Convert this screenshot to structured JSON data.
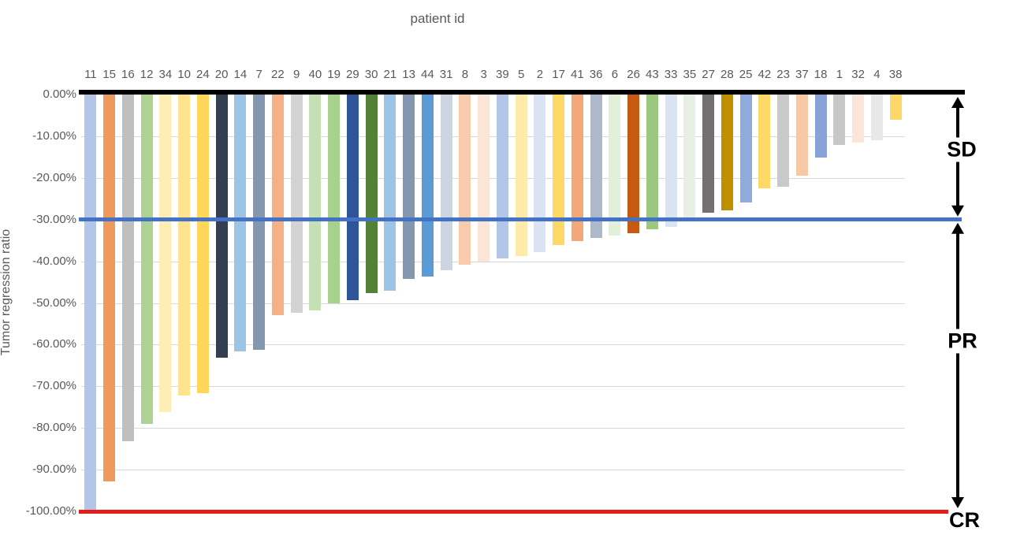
{
  "title": "patient id",
  "y_axis_title": "Tumor regression ratio",
  "annotations": {
    "sd_label": "SD",
    "pr_label": "PR",
    "cr_label": "CR"
  },
  "colors": {
    "threshold_line_blue": "#4472c4",
    "cr_line_red": "#e41b1b",
    "zero_axis_line": "#000000",
    "gridline": "#d9d9d9",
    "axis_text": "#595959",
    "annotation_text": "#000000"
  },
  "chart_data": {
    "type": "bar",
    "title": "patient id",
    "xlabel": "patient id",
    "ylabel": "Tumor regression ratio",
    "ylim": [
      -100,
      0
    ],
    "grid": true,
    "ytick_labels": [
      "0.00%",
      "-10.00%",
      "-20.00%",
      "-30.00%",
      "-40.00%",
      "-50.00%",
      "-60.00%",
      "-70.00%",
      "-80.00%",
      "-90.00%",
      "-100.00%"
    ],
    "ytick_values": [
      0,
      -10,
      -20,
      -30,
      -40,
      -50,
      -60,
      -70,
      -80,
      -90,
      -100
    ],
    "categories": [
      "11",
      "15",
      "16",
      "12",
      "34",
      "10",
      "24",
      "20",
      "14",
      "7",
      "22",
      "9",
      "40",
      "19",
      "29",
      "30",
      "21",
      "13",
      "44",
      "31",
      "8",
      "3",
      "39",
      "5",
      "2",
      "17",
      "41",
      "36",
      "6",
      "26",
      "43",
      "33",
      "35",
      "27",
      "28",
      "25",
      "42",
      "23",
      "37",
      "18",
      "1",
      "32",
      "4",
      "38"
    ],
    "values": [
      -100,
      -92.8,
      -83.2,
      -79,
      -76.2,
      -72.3,
      -71.6,
      -63.1,
      -61.6,
      -61.2,
      -53,
      -52.4,
      -51.8,
      -50.1,
      -49.4,
      -47.6,
      -47,
      -44.3,
      -43.6,
      -42.2,
      -40.8,
      -40,
      -39.3,
      -38.7,
      -37.8,
      -36.1,
      -35.2,
      -34.4,
      -33.9,
      -33.2,
      -32.3,
      -31.7,
      -30.4,
      -28.3,
      -27.8,
      -25.9,
      -22.5,
      -22.1,
      -19.4,
      -15.2,
      -12.1,
      -11.5,
      -11,
      -6.1
    ],
    "bar_colors": [
      "#b4c6e7",
      "#f0995c",
      "#bfbfbf",
      "#aed194",
      "#feeeb5",
      "#ffe38f",
      "#fed75b",
      "#333f50",
      "#9dc3e6",
      "#8497b0",
      "#f4b183",
      "#d5d2d2",
      "#c5e0b4",
      "#a9d18e",
      "#2e5597",
      "#538135",
      "#9dc3e6",
      "#8497b0",
      "#5b9bd5",
      "#cdd4e2",
      "#f8cbad",
      "#fbe5d6",
      "#b4c6e7",
      "#ffeaa9",
      "#dae3f3",
      "#ffd966",
      "#f3a878",
      "#adb9ca",
      "#e2efda",
      "#c55a11",
      "#9cc77e",
      "#dae3f1",
      "#e8f0e3",
      "#747070",
      "#bf8f00",
      "#8faadc",
      "#ffd966",
      "#c9c9c9",
      "#f7c8a6",
      "#89a3d9",
      "#c7c7c9",
      "#fbe5d6",
      "#e9e8e8",
      "#fdd768"
    ],
    "reference_lines": [
      {
        "y": -30,
        "color": "#4472c4"
      },
      {
        "y": -100,
        "color": "#e41b1b"
      }
    ],
    "region_annotations": [
      {
        "label": "SD",
        "from": 0,
        "to": -30
      },
      {
        "label": "PR",
        "from": -30,
        "to": -100
      },
      {
        "label": "CR",
        "at": -100
      }
    ],
    "legend": null
  }
}
